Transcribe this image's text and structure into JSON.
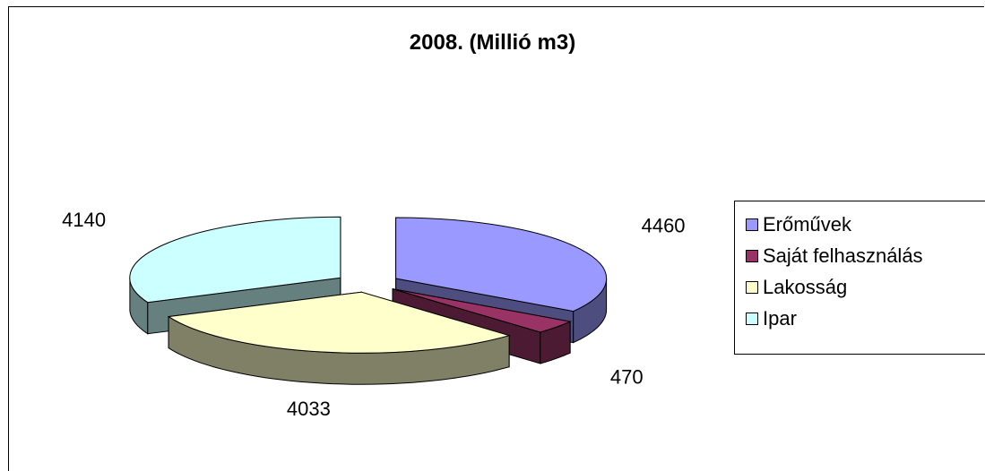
{
  "chart_data": {
    "type": "pie",
    "title": "2008. (Millió m3)",
    "categories": [
      "Erőművek",
      "Saját felhasználás",
      "Lakosság",
      "Ipar"
    ],
    "values": [
      4460,
      470,
      4033,
      4140
    ],
    "data_labels": [
      "4460",
      "470",
      "4033",
      "4140"
    ],
    "exploded": true,
    "three_d": true,
    "legend_position": "right",
    "colors": {
      "Erőművek": "#9999ff",
      "Saját felhasználás": "#993366",
      "Lakosság": "#ffffcc",
      "Ipar": "#ccffff"
    }
  }
}
